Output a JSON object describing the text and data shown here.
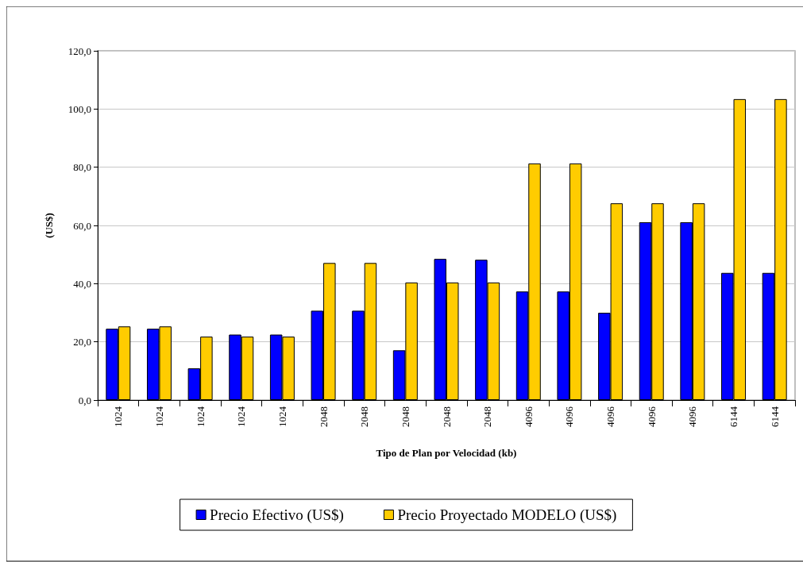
{
  "chart_data": {
    "type": "bar",
    "xlabel": "Tipo de Plan por Velocidad (kb)",
    "ylabel": "(US$)",
    "categories": [
      "1024",
      "1024",
      "1024",
      "1024",
      "1024",
      "2048",
      "2048",
      "2048",
      "2048",
      "2048",
      "4096",
      "4096",
      "4096",
      "4096",
      "4096",
      "6144",
      "6144"
    ],
    "series": [
      {
        "name": "Precio Efectivo (US$)",
        "color": "#0000ff",
        "values": [
          24.5,
          24.5,
          10.9,
          22.5,
          22.5,
          30.7,
          30.7,
          17.1,
          48.5,
          48.2,
          37.3,
          37.3,
          30.0,
          61.1,
          61.1,
          43.7,
          43.7
        ]
      },
      {
        "name": "Precio Proyectado MODELO (US$)",
        "color": "#ffcc00",
        "values": [
          25.3,
          25.3,
          21.8,
          21.8,
          21.8,
          47.1,
          47.1,
          40.4,
          40.4,
          40.4,
          81.3,
          81.3,
          67.6,
          67.6,
          67.6,
          103.4,
          103.4
        ]
      }
    ],
    "ylim": [
      0,
      120
    ],
    "yticks": [
      {
        "value": 0,
        "label": "0,0"
      },
      {
        "value": 20,
        "label": "20,0"
      },
      {
        "value": 40,
        "label": "40,0"
      },
      {
        "value": 60,
        "label": "60,0"
      },
      {
        "value": 80,
        "label": "80,0"
      },
      {
        "value": 100,
        "label": "100,0"
      },
      {
        "value": 120,
        "label": "120,0"
      }
    ],
    "grid": "y",
    "legend": "bottom"
  }
}
